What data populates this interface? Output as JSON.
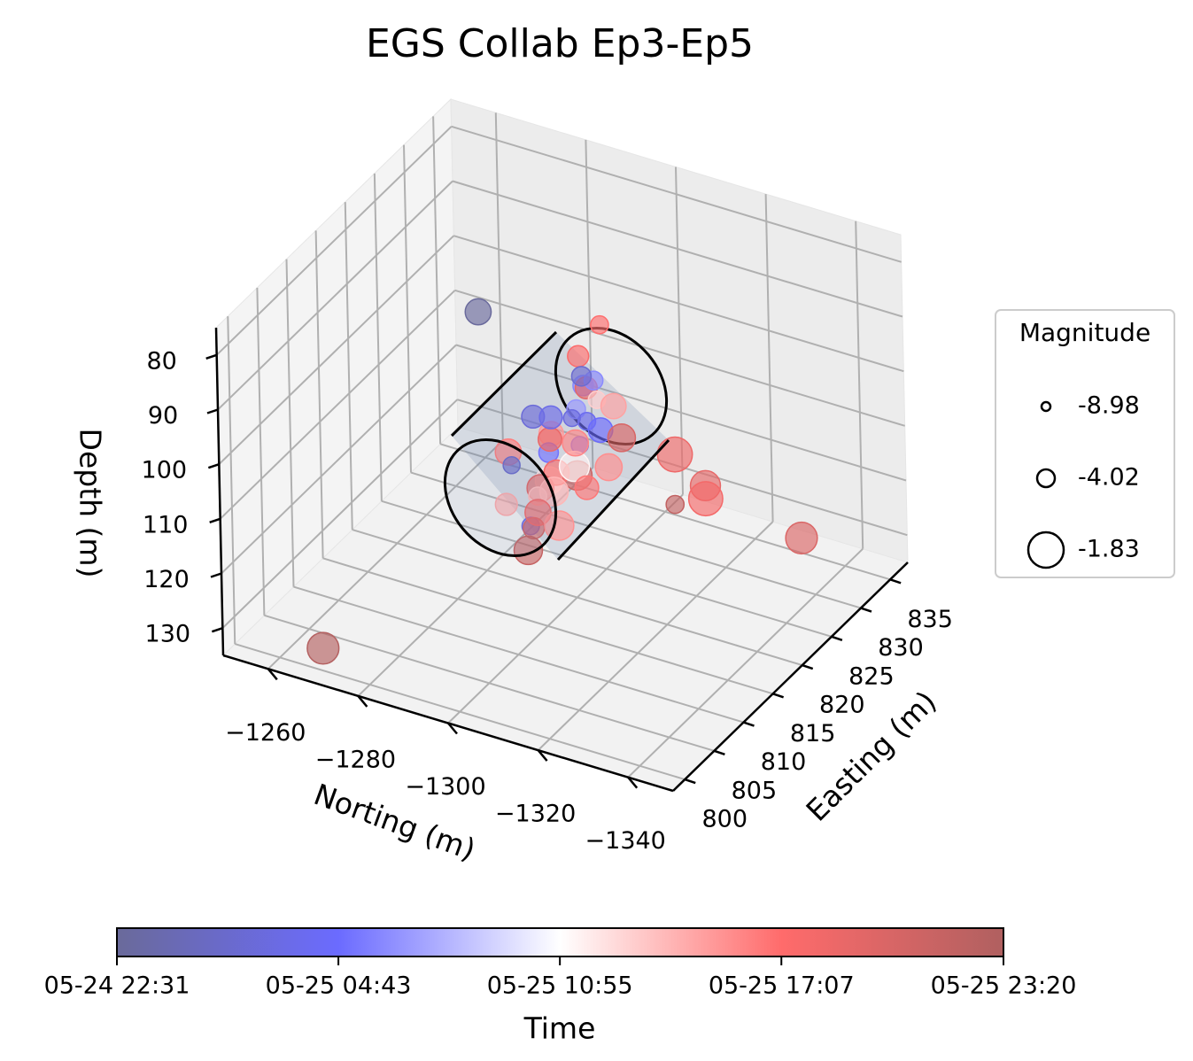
{
  "chart_data": {
    "type": "scatter3d",
    "title": "EGS Collab Ep3-Ep5",
    "xlabel": "Norting (m)",
    "ylabel": "Easting (m)",
    "zlabel": "Depth (m)",
    "xlim": [
      -1250,
      -1350
    ],
    "xticks": [
      {
        "value": -1260,
        "label": "−1260"
      },
      {
        "value": -1280,
        "label": "−1280"
      },
      {
        "value": -1300,
        "label": "−1300"
      },
      {
        "value": -1320,
        "label": "−1320"
      },
      {
        "value": -1340,
        "label": "−1340"
      }
    ],
    "ylim": [
      798,
      838
    ],
    "yticks": [
      800,
      805,
      810,
      815,
      820,
      825,
      830,
      835
    ],
    "zlim": [
      135,
      75
    ],
    "zticks": [
      80,
      90,
      100,
      110,
      120,
      130
    ],
    "grid": true,
    "series": [
      {
        "x": [
          -1298,
          -1302,
          -1296,
          -1305,
          -1300,
          -1294,
          -1303,
          -1299,
          -1301,
          -1297,
          -1306,
          -1295,
          -1300,
          -1304,
          -1298,
          -1302,
          -1296,
          -1300,
          -1303,
          -1299,
          -1301,
          -1297,
          -1305,
          -1299,
          -1302,
          -1300,
          -1296,
          -1304,
          -1298,
          -1301,
          -1300,
          -1303,
          -1297,
          -1299,
          -1302,
          -1300,
          -1281.9,
          -1292.9,
          -1314.5,
          -1318.5,
          -1318.5,
          -1314.3,
          -1331.7,
          -1269.7
        ],
        "y": [
          810,
          811,
          812,
          812,
          813,
          814,
          814,
          815,
          815,
          816,
          816,
          817,
          817,
          818,
          818,
          819,
          819,
          820,
          820,
          821,
          821,
          822,
          822,
          823,
          823,
          824,
          824,
          825,
          825,
          826,
          812,
          814,
          816,
          818,
          820,
          822,
          818,
          830,
          826,
          828,
          828,
          826,
          834,
          800
        ],
        "z": [
          108,
          112,
          101,
          104,
          115,
          106,
          98,
          110,
          103,
          113,
          107,
          100,
          109,
          104,
          114,
          99,
          106,
          111,
          102,
          108,
          97,
          105,
          112,
          100,
          107,
          103,
          96,
          110,
          101,
          106,
          118,
          95,
          116,
          120,
          94,
          117,
          85.1,
          97.3,
          111.5,
          118.3,
          120.7,
          120.7,
          130.9,
          130.9
        ],
        "size": [
          -3.5,
          -4.2,
          -3.0,
          -2.8,
          -3.6,
          -4.5,
          -3.2,
          -2.9,
          -3.8,
          -4.0,
          -2.6,
          -3.4,
          -3.1,
          -4.4,
          -2.7,
          -3.9,
          -3.3,
          -2.5,
          -4.1,
          -3.0,
          -3.7,
          -4.6,
          -2.9,
          -3.5,
          -3.2,
          -4.3,
          -3.6,
          -2.8,
          -3.9,
          -3.1,
          -2.7,
          -3.4,
          -3.0,
          -2.6,
          -3.8,
          -3.3,
          -3.0,
          -4.0,
          -1.9,
          -2.5,
          -2.0,
          -4.0,
          -2.3,
          -2.3
        ],
        "time": [
          "05-25 14:30",
          "05-25 03:10",
          "05-25 16:20",
          "05-25 12:00",
          "05-25 20:40",
          "05-25 01:30",
          "05-25 15:10",
          "05-25 19:30",
          "05-25 05:00",
          "05-25 13:40",
          "05-25 21:10",
          "05-25 02:20",
          "05-25 17:50",
          "05-25 04:10",
          "05-25 14:00",
          "05-25 06:30",
          "05-25 18:40",
          "05-25 11:20",
          "05-25 03:40",
          "05-25 16:00",
          "05-25 05:50",
          "05-25 02:50",
          "05-25 15:40",
          "05-25 19:10",
          "05-25 04:40",
          "05-25 13:00",
          "05-25 17:20",
          "05-25 20:10",
          "05-25 06:00",
          "05-25 14:50",
          "05-25 21:40",
          "05-25 03:20",
          "05-25 18:10",
          "05-25 15:30",
          "05-25 01:50",
          "05-25 16:40",
          "05-24 22:40",
          "05-25 17:00",
          "05-25 18:30",
          "05-25 19:00",
          "05-25 18:00",
          "05-25 22:00",
          "05-25 20:00",
          "05-25 23:00"
        ]
      }
    ],
    "legend": {
      "title": "Magnitude",
      "values": [
        -8.98,
        -4.02,
        -1.83
      ],
      "position": "right"
    },
    "colorbar": {
      "label": "Time",
      "ticks": [
        "05-24 22:31",
        "05-25 04:43",
        "05-25 10:55",
        "05-25 17:07",
        "05-25 23:20"
      ],
      "colormap": [
        "#6a6a9a",
        "#6b6bff",
        "#ffffff",
        "#ff6b6b",
        "#b06060"
      ]
    }
  }
}
